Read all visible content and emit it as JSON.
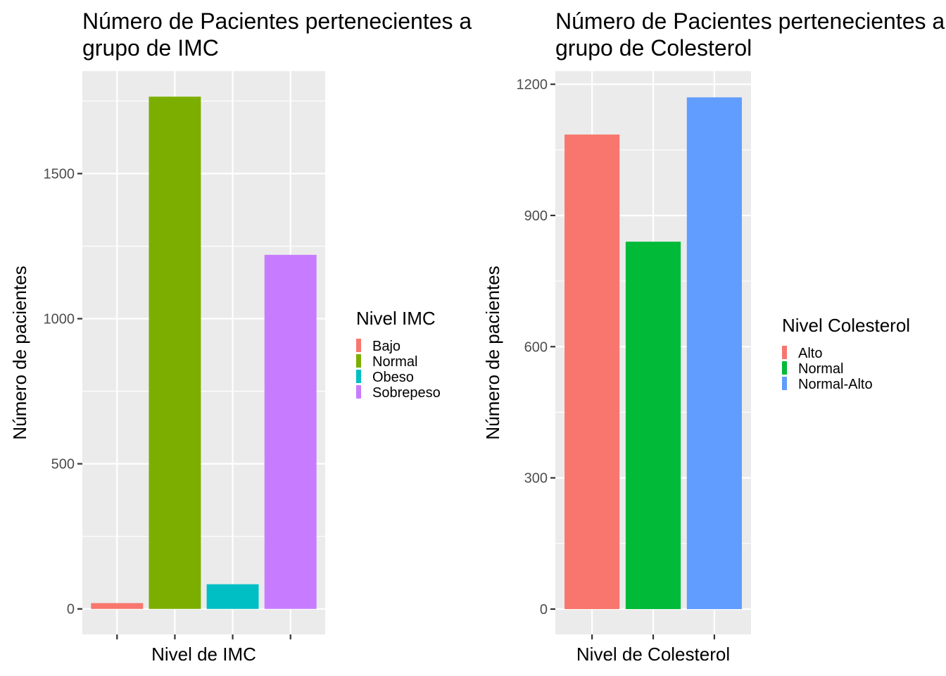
{
  "chart_data": [
    {
      "type": "bar",
      "title_lines": [
        "Número de Pacientes pertenecientes a cada",
        "grupo de IMC"
      ],
      "xlabel": "Nivel de IMC",
      "ylabel": "Número de pacientes",
      "categories": [
        "Bajo",
        "Normal",
        "Obeso",
        "Sobrepeso"
      ],
      "values": [
        20,
        1765,
        85,
        1220
      ],
      "colors": [
        "#F8766D",
        "#7CAE00",
        "#00BFC4",
        "#C77CFF"
      ],
      "ylim": [
        -88,
        1853
      ],
      "yticks": [
        0,
        500,
        1000,
        1500
      ],
      "yticks_minor": [
        250,
        750,
        1250,
        1750
      ],
      "x_tick_labels_shown": false,
      "legend": {
        "title": "Nivel IMC",
        "position": "right",
        "entries": [
          "Bajo",
          "Normal",
          "Obeso",
          "Sobrepeso"
        ]
      },
      "grid": true
    },
    {
      "type": "bar",
      "title_lines": [
        "Número de Pacientes pertenecientes a cada",
        "grupo de Colesterol"
      ],
      "xlabel": "Nivel de Colesterol",
      "ylabel": "Número de pacientes",
      "categories": [
        "Alto",
        "Normal",
        "Normal-Alto"
      ],
      "values": [
        1085,
        840,
        1170
      ],
      "colors": [
        "#F8766D",
        "#00BA38",
        "#619CFF"
      ],
      "ylim": [
        -58,
        1230
      ],
      "yticks": [
        0,
        300,
        600,
        900,
        1200
      ],
      "yticks_minor": [
        150,
        450,
        750,
        1050
      ],
      "x_tick_labels_shown": false,
      "legend": {
        "title": "Nivel Colesterol",
        "position": "right",
        "entries": [
          "Alto",
          "Normal",
          "Normal-Alto"
        ]
      },
      "grid": true
    }
  ]
}
